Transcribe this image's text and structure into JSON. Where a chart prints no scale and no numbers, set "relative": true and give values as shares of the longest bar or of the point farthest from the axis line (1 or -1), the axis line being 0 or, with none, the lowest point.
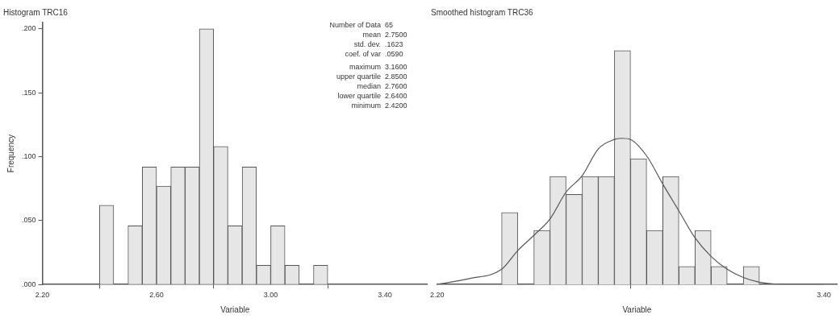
{
  "chart_data": [
    {
      "type": "histogram",
      "title": "Histogram TRC16",
      "xlabel": "Variable",
      "ylabel": "Frequency",
      "bins": [
        2.4,
        2.45,
        2.5,
        2.55,
        2.6,
        2.65,
        2.7,
        2.75,
        2.8,
        2.85,
        2.9,
        2.95,
        3.0,
        3.05,
        3.1,
        3.15,
        3.2
      ],
      "values": [
        0.062,
        0,
        0.046,
        0.092,
        0.077,
        0.092,
        0.092,
        0.2,
        0.108,
        0.046,
        0.092,
        0.015,
        0.046,
        0.015,
        0,
        0.015
      ],
      "color": "#e6e6e6",
      "xlim": [
        2.2,
        3.55
      ],
      "xticks": [
        {
          "value": 2.2,
          "label": "2.20"
        },
        {
          "value": 2.6,
          "label": "2.60"
        },
        {
          "value": 3.0,
          "label": "3.00"
        },
        {
          "value": 3.4,
          "label": "3.40"
        }
      ],
      "ylim": [
        0,
        0.205
      ],
      "yticks": [
        {
          "value": 0,
          "label": ".000"
        },
        {
          "value": 0.05,
          "label": ".050"
        },
        {
          "value": 0.1,
          "label": ".100"
        },
        {
          "value": 0.15,
          "label": ".150"
        },
        {
          "value": 0.2,
          "label": ".200"
        }
      ],
      "annotations": [
        "Number of Data 65",
        "mean 2.7500",
        "std. dev. .1623",
        "coef. of var .0590",
        "maximum 3.1600",
        "upper quartile 2.8500",
        "median 2.7600",
        "lower quartile 2.6400",
        "minimum 2.4200"
      ]
    },
    {
      "type": "histogram",
      "title": "Smoothed histogram TRC36",
      "xlabel": "Variable",
      "relative": true,
      "bins": [
        2.4,
        2.45,
        2.5,
        2.55,
        2.6,
        2.65,
        2.7,
        2.75,
        2.8,
        2.85,
        2.9,
        2.95,
        3.0,
        3.05,
        3.1,
        3.15,
        3.2
      ],
      "xlim": [
        2.2,
        3.44
      ],
      "xticks": [
        {
          "value": 2.2,
          "label": "2.20"
        },
        {
          "value": 3.4,
          "label": "3.40"
        }
      ],
      "series": [
        {
          "type": "histogram",
          "color": "#e6e6e6",
          "values": [
            0.308,
            0,
            0.231,
            0.462,
            0.385,
            0.462,
            0.462,
            1,
            0.538,
            0.231,
            0.462,
            0.077,
            0.231,
            0.077,
            0,
            0.077
          ]
        },
        {
          "type": "line",
          "color": "#555555",
          "x": [
            2.2,
            2.3,
            2.4,
            2.45,
            2.5,
            2.55,
            2.6,
            2.65,
            2.7,
            2.75,
            2.775,
            2.8,
            2.85,
            2.9,
            2.95,
            3.0,
            3.05,
            3.1,
            3.15,
            3.2,
            3.3,
            3.4
          ],
          "values": [
            0,
            0.025,
            0.065,
            0.145,
            0.21,
            0.28,
            0.395,
            0.465,
            0.58,
            0.62,
            0.625,
            0.62,
            0.55,
            0.43,
            0.315,
            0.2,
            0.12,
            0.065,
            0.03,
            0.01,
            0,
            0
          ]
        }
      ]
    }
  ]
}
